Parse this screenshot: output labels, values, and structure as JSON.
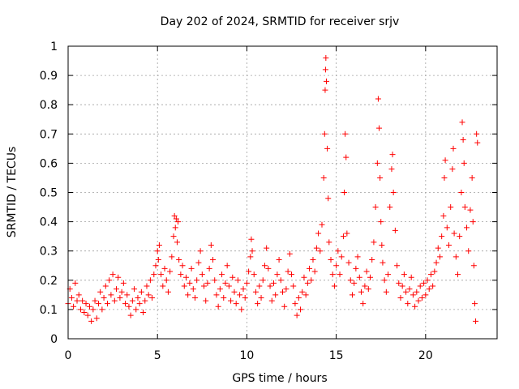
{
  "chart_data": {
    "type": "scatter",
    "title": "Day 202 of 2024, SRMTID for receiver srjv",
    "xlabel": "GPS time / hours",
    "ylabel": "SRMTID / TECUs",
    "xlim": [
      0,
      24
    ],
    "ylim": [
      0,
      1
    ],
    "x_ticks": [
      0,
      5,
      10,
      15,
      20
    ],
    "x_tick_labels": [
      "0",
      "5",
      "10",
      "15",
      "20"
    ],
    "y_ticks": [
      0,
      0.1,
      0.2,
      0.3,
      0.4,
      0.5,
      0.6,
      0.7,
      0.8,
      0.9,
      1
    ],
    "y_tick_labels": [
      "0",
      "0.1",
      "0.2",
      "0.3",
      "0.4",
      "0.5",
      "0.6",
      "0.7",
      "0.8",
      "0.9",
      "1"
    ],
    "grid": true,
    "marker": "plus",
    "series": [
      {
        "name": "srjv",
        "color": "#ff0000",
        "points": [
          [
            0.0,
            0.12
          ],
          [
            0.1,
            0.17
          ],
          [
            0.2,
            0.14
          ],
          [
            0.3,
            0.11
          ],
          [
            0.4,
            0.19
          ],
          [
            0.5,
            0.13
          ],
          [
            0.6,
            0.15
          ],
          [
            0.7,
            0.1
          ],
          [
            0.8,
            0.13
          ],
          [
            0.9,
            0.09
          ],
          [
            1.0,
            0.12
          ],
          [
            1.1,
            0.08
          ],
          [
            1.2,
            0.11
          ],
          [
            1.3,
            0.06
          ],
          [
            1.4,
            0.1
          ],
          [
            1.5,
            0.13
          ],
          [
            1.6,
            0.07
          ],
          [
            1.7,
            0.12
          ],
          [
            1.8,
            0.16
          ],
          [
            1.9,
            0.1
          ],
          [
            2.0,
            0.14
          ],
          [
            2.1,
            0.18
          ],
          [
            2.2,
            0.12
          ],
          [
            2.3,
            0.2
          ],
          [
            2.4,
            0.15
          ],
          [
            2.5,
            0.22
          ],
          [
            2.6,
            0.13
          ],
          [
            2.7,
            0.17
          ],
          [
            2.8,
            0.21
          ],
          [
            2.9,
            0.14
          ],
          [
            3.0,
            0.16
          ],
          [
            3.1,
            0.19
          ],
          [
            3.2,
            0.12
          ],
          [
            3.3,
            0.15
          ],
          [
            3.4,
            0.11
          ],
          [
            3.5,
            0.08
          ],
          [
            3.6,
            0.13
          ],
          [
            3.7,
            0.17
          ],
          [
            3.8,
            0.1
          ],
          [
            3.9,
            0.14
          ],
          [
            4.0,
            0.12
          ],
          [
            4.1,
            0.16
          ],
          [
            4.2,
            0.09
          ],
          [
            4.3,
            0.13
          ],
          [
            4.4,
            0.18
          ],
          [
            4.5,
            0.15
          ],
          [
            4.6,
            0.2
          ],
          [
            4.7,
            0.14
          ],
          [
            4.8,
            0.22
          ],
          [
            4.9,
            0.25
          ],
          [
            5.0,
            0.3
          ],
          [
            5.05,
            0.27
          ],
          [
            5.1,
            0.32
          ],
          [
            5.2,
            0.22
          ],
          [
            5.3,
            0.18
          ],
          [
            5.4,
            0.24
          ],
          [
            5.5,
            0.2
          ],
          [
            5.6,
            0.16
          ],
          [
            5.7,
            0.23
          ],
          [
            5.8,
            0.28
          ],
          [
            5.9,
            0.35
          ],
          [
            5.95,
            0.42
          ],
          [
            6.0,
            0.38
          ],
          [
            6.05,
            0.41
          ],
          [
            6.1,
            0.33
          ],
          [
            6.15,
            0.4
          ],
          [
            6.2,
            0.27
          ],
          [
            6.3,
            0.22
          ],
          [
            6.4,
            0.25
          ],
          [
            6.5,
            0.18
          ],
          [
            6.6,
            0.21
          ],
          [
            6.7,
            0.15
          ],
          [
            6.8,
            0.19
          ],
          [
            6.9,
            0.24
          ],
          [
            7.0,
            0.17
          ],
          [
            7.1,
            0.14
          ],
          [
            7.2,
            0.2
          ],
          [
            7.3,
            0.26
          ],
          [
            7.4,
            0.3
          ],
          [
            7.5,
            0.22
          ],
          [
            7.6,
            0.18
          ],
          [
            7.7,
            0.13
          ],
          [
            7.8,
            0.19
          ],
          [
            7.9,
            0.24
          ],
          [
            8.0,
            0.32
          ],
          [
            8.1,
            0.27
          ],
          [
            8.2,
            0.2
          ],
          [
            8.3,
            0.15
          ],
          [
            8.4,
            0.11
          ],
          [
            8.5,
            0.17
          ],
          [
            8.6,
            0.22
          ],
          [
            8.7,
            0.14
          ],
          [
            8.8,
            0.19
          ],
          [
            8.9,
            0.25
          ],
          [
            9.0,
            0.18
          ],
          [
            9.1,
            0.13
          ],
          [
            9.2,
            0.21
          ],
          [
            9.3,
            0.16
          ],
          [
            9.4,
            0.12
          ],
          [
            9.5,
            0.2
          ],
          [
            9.6,
            0.15
          ],
          [
            9.7,
            0.1
          ],
          [
            9.8,
            0.17
          ],
          [
            9.9,
            0.14
          ],
          [
            10.0,
            0.19
          ],
          [
            10.1,
            0.23
          ],
          [
            10.2,
            0.28
          ],
          [
            10.25,
            0.34
          ],
          [
            10.3,
            0.3
          ],
          [
            10.4,
            0.22
          ],
          [
            10.5,
            0.16
          ],
          [
            10.6,
            0.12
          ],
          [
            10.7,
            0.18
          ],
          [
            10.8,
            0.14
          ],
          [
            10.9,
            0.2
          ],
          [
            11.0,
            0.25
          ],
          [
            11.1,
            0.31
          ],
          [
            11.2,
            0.24
          ],
          [
            11.3,
            0.18
          ],
          [
            11.4,
            0.13
          ],
          [
            11.5,
            0.19
          ],
          [
            11.6,
            0.15
          ],
          [
            11.7,
            0.22
          ],
          [
            11.8,
            0.27
          ],
          [
            11.9,
            0.2
          ],
          [
            12.0,
            0.16
          ],
          [
            12.1,
            0.11
          ],
          [
            12.2,
            0.17
          ],
          [
            12.3,
            0.23
          ],
          [
            12.4,
            0.29
          ],
          [
            12.5,
            0.22
          ],
          [
            12.6,
            0.18
          ],
          [
            12.7,
            0.12
          ],
          [
            12.8,
            0.08
          ],
          [
            12.9,
            0.14
          ],
          [
            13.0,
            0.1
          ],
          [
            13.1,
            0.16
          ],
          [
            13.2,
            0.21
          ],
          [
            13.3,
            0.15
          ],
          [
            13.4,
            0.19
          ],
          [
            13.5,
            0.24
          ],
          [
            13.6,
            0.2
          ],
          [
            13.7,
            0.27
          ],
          [
            13.8,
            0.23
          ],
          [
            13.9,
            0.31
          ],
          [
            14.0,
            0.36
          ],
          [
            14.1,
            0.3
          ],
          [
            14.2,
            0.39
          ],
          [
            14.3,
            0.55
          ],
          [
            14.35,
            0.7
          ],
          [
            14.38,
            0.85
          ],
          [
            14.4,
            0.92
          ],
          [
            14.42,
            0.96
          ],
          [
            14.45,
            0.88
          ],
          [
            14.5,
            0.65
          ],
          [
            14.55,
            0.48
          ],
          [
            14.6,
            0.33
          ],
          [
            14.7,
            0.27
          ],
          [
            14.8,
            0.22
          ],
          [
            14.9,
            0.18
          ],
          [
            15.0,
            0.25
          ],
          [
            15.1,
            0.3
          ],
          [
            15.2,
            0.22
          ],
          [
            15.3,
            0.28
          ],
          [
            15.4,
            0.35
          ],
          [
            15.45,
            0.5
          ],
          [
            15.5,
            0.7
          ],
          [
            15.55,
            0.62
          ],
          [
            15.6,
            0.36
          ],
          [
            15.7,
            0.26
          ],
          [
            15.8,
            0.2
          ],
          [
            15.9,
            0.15
          ],
          [
            16.0,
            0.19
          ],
          [
            16.1,
            0.24
          ],
          [
            16.2,
            0.28
          ],
          [
            16.3,
            0.21
          ],
          [
            16.4,
            0.16
          ],
          [
            16.5,
            0.12
          ],
          [
            16.6,
            0.18
          ],
          [
            16.7,
            0.23
          ],
          [
            16.8,
            0.17
          ],
          [
            16.9,
            0.21
          ],
          [
            17.0,
            0.27
          ],
          [
            17.1,
            0.33
          ],
          [
            17.2,
            0.45
          ],
          [
            17.3,
            0.6
          ],
          [
            17.35,
            0.82
          ],
          [
            17.4,
            0.72
          ],
          [
            17.45,
            0.55
          ],
          [
            17.5,
            0.4
          ],
          [
            17.55,
            0.32
          ],
          [
            17.6,
            0.26
          ],
          [
            17.7,
            0.2
          ],
          [
            17.8,
            0.16
          ],
          [
            17.9,
            0.22
          ],
          [
            18.0,
            0.45
          ],
          [
            18.1,
            0.58
          ],
          [
            18.15,
            0.63
          ],
          [
            18.2,
            0.5
          ],
          [
            18.3,
            0.37
          ],
          [
            18.4,
            0.25
          ],
          [
            18.5,
            0.19
          ],
          [
            18.6,
            0.14
          ],
          [
            18.7,
            0.18
          ],
          [
            18.8,
            0.22
          ],
          [
            18.9,
            0.16
          ],
          [
            19.0,
            0.12
          ],
          [
            19.1,
            0.17
          ],
          [
            19.2,
            0.21
          ],
          [
            19.3,
            0.15
          ],
          [
            19.4,
            0.11
          ],
          [
            19.5,
            0.16
          ],
          [
            19.6,
            0.13
          ],
          [
            19.7,
            0.18
          ],
          [
            19.8,
            0.14
          ],
          [
            19.9,
            0.19
          ],
          [
            20.0,
            0.15
          ],
          [
            20.1,
            0.2
          ],
          [
            20.2,
            0.17
          ],
          [
            20.3,
            0.22
          ],
          [
            20.4,
            0.18
          ],
          [
            20.5,
            0.23
          ],
          [
            20.6,
            0.26
          ],
          [
            20.7,
            0.31
          ],
          [
            20.8,
            0.28
          ],
          [
            20.9,
            0.35
          ],
          [
            21.0,
            0.42
          ],
          [
            21.05,
            0.55
          ],
          [
            21.1,
            0.61
          ],
          [
            21.2,
            0.38
          ],
          [
            21.3,
            0.32
          ],
          [
            21.4,
            0.45
          ],
          [
            21.5,
            0.58
          ],
          [
            21.55,
            0.65
          ],
          [
            21.6,
            0.36
          ],
          [
            21.7,
            0.28
          ],
          [
            21.8,
            0.22
          ],
          [
            21.9,
            0.35
          ],
          [
            22.0,
            0.5
          ],
          [
            22.05,
            0.74
          ],
          [
            22.1,
            0.68
          ],
          [
            22.15,
            0.6
          ],
          [
            22.2,
            0.45
          ],
          [
            22.3,
            0.38
          ],
          [
            22.4,
            0.3
          ],
          [
            22.5,
            0.44
          ],
          [
            22.6,
            0.55
          ],
          [
            22.65,
            0.4
          ],
          [
            22.7,
            0.25
          ],
          [
            22.75,
            0.12
          ],
          [
            22.8,
            0.06
          ],
          [
            22.85,
            0.7
          ],
          [
            22.9,
            0.67
          ]
        ]
      }
    ]
  }
}
